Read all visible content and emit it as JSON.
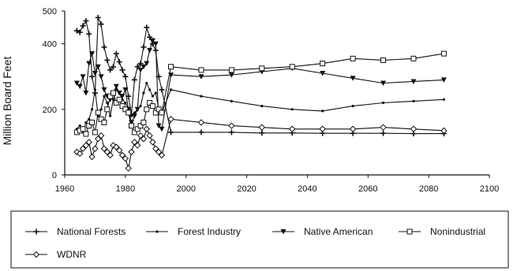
{
  "chart_data": {
    "type": "line",
    "title": "",
    "xlabel": "",
    "ylabel": "Million Board Feet",
    "xlim": [
      1960,
      2100
    ],
    "ylim": [
      0,
      500
    ],
    "x_ticks": [
      "1960",
      "1980",
      "2000",
      "2020",
      "2040",
      "2060",
      "2080",
      "2100"
    ],
    "y_ticks": [
      "0",
      "200",
      "400",
      "500"
    ],
    "grid": false,
    "legend_position": "bottom",
    "series": [
      {
        "name": "National Forests",
        "marker": "plus",
        "color": "#111111",
        "x": [
          1964,
          1965,
          1966,
          1967,
          1968,
          1969,
          1970,
          1971,
          1972,
          1973,
          1974,
          1975,
          1976,
          1977,
          1978,
          1979,
          1980,
          1981,
          1982,
          1983,
          1984,
          1985,
          1986,
          1987,
          1988,
          1989,
          1990,
          1991,
          1992,
          1995,
          2005,
          2015,
          2025,
          2035,
          2045,
          2055,
          2065,
          2075,
          2085
        ],
        "y": [
          440,
          435,
          455,
          470,
          430,
          300,
          250,
          480,
          460,
          390,
          350,
          320,
          330,
          370,
          345,
          320,
          300,
          240,
          185,
          290,
          330,
          340,
          390,
          450,
          420,
          400,
          380,
          300,
          260,
          130,
          130,
          130,
          128,
          128,
          127,
          127,
          127,
          126,
          126
        ]
      },
      {
        "name": "Forest Industry",
        "marker": "dot",
        "color": "#111111",
        "x": [
          1964,
          1965,
          1966,
          1967,
          1968,
          1969,
          1970,
          1971,
          1972,
          1973,
          1974,
          1975,
          1976,
          1977,
          1978,
          1979,
          1980,
          1981,
          1982,
          1983,
          1984,
          1985,
          1986,
          1987,
          1988,
          1989,
          1990,
          1991,
          1992,
          1995,
          2005,
          2015,
          2025,
          2035,
          2045,
          2055,
          2065,
          2075,
          2085
        ],
        "y": [
          140,
          150,
          130,
          160,
          170,
          200,
          260,
          180,
          200,
          240,
          220,
          180,
          230,
          260,
          250,
          230,
          220,
          200,
          180,
          190,
          200,
          210,
          250,
          280,
          260,
          240,
          250,
          200,
          190,
          260,
          240,
          225,
          210,
          200,
          195,
          210,
          220,
          225,
          230
        ]
      },
      {
        "name": "Native American",
        "marker": "triangle-down",
        "color": "#111111",
        "x": [
          1964,
          1965,
          1966,
          1967,
          1968,
          1969,
          1970,
          1971,
          1972,
          1973,
          1974,
          1975,
          1976,
          1977,
          1978,
          1979,
          1980,
          1981,
          1982,
          1983,
          1984,
          1985,
          1986,
          1987,
          1988,
          1989,
          1990,
          1991,
          1992,
          1995,
          2005,
          2015,
          2025,
          2035,
          2045,
          2055,
          2065,
          2075,
          2085
        ],
        "y": [
          280,
          270,
          300,
          250,
          340,
          370,
          310,
          330,
          300,
          260,
          240,
          230,
          250,
          270,
          250,
          240,
          260,
          200,
          160,
          180,
          200,
          320,
          330,
          340,
          380,
          410,
          400,
          150,
          140,
          305,
          300,
          305,
          315,
          325,
          310,
          295,
          280,
          285,
          290
        ]
      },
      {
        "name": "Nonindustrial",
        "marker": "square-open",
        "color": "#111111",
        "x": [
          1964,
          1965,
          1966,
          1967,
          1968,
          1969,
          1970,
          1971,
          1972,
          1973,
          1974,
          1975,
          1976,
          1977,
          1978,
          1979,
          1980,
          1981,
          1982,
          1983,
          1984,
          1985,
          1986,
          1987,
          1988,
          1989,
          1990,
          1991,
          1992,
          1995,
          2005,
          2015,
          2025,
          2035,
          2045,
          2055,
          2065,
          2075,
          2085
        ],
        "y": [
          130,
          135,
          140,
          125,
          150,
          160,
          130,
          190,
          170,
          160,
          200,
          240,
          250,
          220,
          230,
          210,
          200,
          190,
          150,
          130,
          140,
          150,
          160,
          200,
          220,
          210,
          190,
          200,
          190,
          330,
          320,
          320,
          325,
          330,
          340,
          355,
          350,
          355,
          370
        ]
      },
      {
        "name": "WDNR",
        "marker": "diamond-open",
        "color": "#111111",
        "x": [
          1964,
          1965,
          1966,
          1967,
          1968,
          1969,
          1970,
          1971,
          1972,
          1973,
          1974,
          1975,
          1976,
          1977,
          1978,
          1979,
          1980,
          1981,
          1982,
          1983,
          1984,
          1985,
          1986,
          1987,
          1988,
          1989,
          1990,
          1991,
          1992,
          1995,
          2005,
          2015,
          2025,
          2035,
          2045,
          2055,
          2065,
          2075,
          2085
        ],
        "y": [
          70,
          65,
          80,
          90,
          100,
          55,
          80,
          110,
          120,
          80,
          70,
          60,
          90,
          85,
          75,
          60,
          50,
          20,
          70,
          100,
          90,
          120,
          110,
          140,
          120,
          100,
          80,
          70,
          60,
          170,
          160,
          150,
          145,
          140,
          140,
          140,
          145,
          140,
          135
        ]
      }
    ]
  }
}
